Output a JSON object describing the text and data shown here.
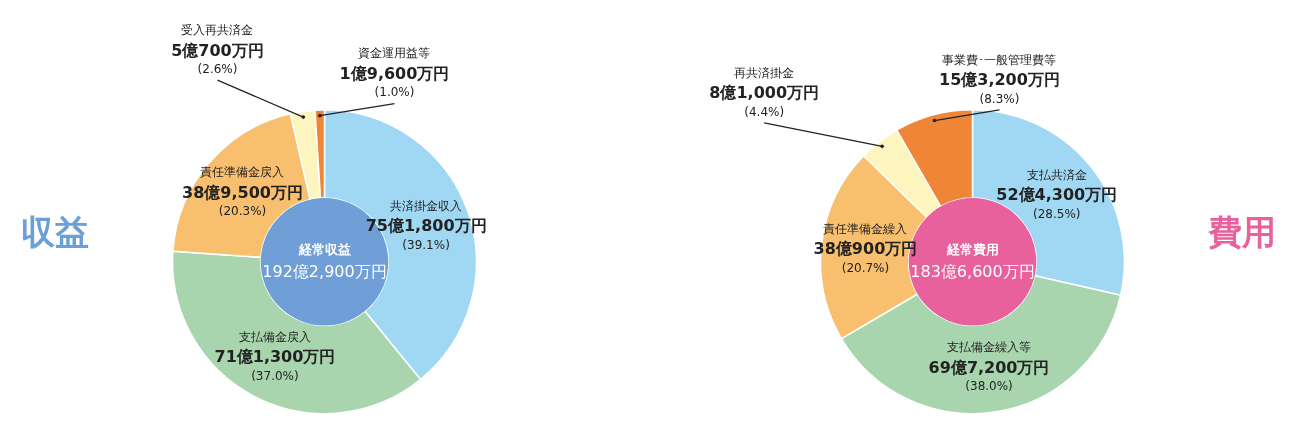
{
  "chart_data": [
    {
      "type": "donut",
      "title": "収益",
      "annotations": [
        "経常収益",
        "192億2,900万円"
      ],
      "categories": [
        "共済掛金収入",
        "支払備金戻入",
        "責任準備金戻入",
        "受入再共済金",
        "資金運用益等"
      ],
      "values": [
        39.1,
        37.0,
        20.3,
        2.6,
        1.0
      ],
      "value_labels": [
        "75億1,800万円\n(39.1%)",
        "71億1,300万円\n(37.0%)",
        "38億9,500万円\n(20.3%)",
        "5億700万円\n(2.6%)",
        "1億9,600万円\n(1.0%)"
      ],
      "colors": [
        "#a0d8f4",
        "#a8d5ad",
        "#f7bf6e",
        "#fdf5c0",
        "#ef8536"
      ]
    },
    {
      "type": "donut",
      "title": "費用",
      "annotations": [
        "経常費用",
        "183億6,600万円"
      ],
      "categories": [
        "支払共済金",
        "支払備金繰入等",
        "責任準備金繰入",
        "再共済掛金",
        "事業費･一般管理費等"
      ],
      "values": [
        28.5,
        38.0,
        20.7,
        4.4,
        8.3
      ],
      "value_labels": [
        "52億4,300万円\n(28.5%)",
        "69億7,200万円\n(38.0%)",
        "38億900万円\n(20.7%)",
        "8億1,000万円\n(4.4%)",
        "15億3,200万円\n(8.3%)"
      ],
      "colors": [
        "#a0d8f4",
        "#a8d5ad",
        "#f7bf6e",
        "#fdf5c0",
        "#ef8536"
      ]
    }
  ]
}
